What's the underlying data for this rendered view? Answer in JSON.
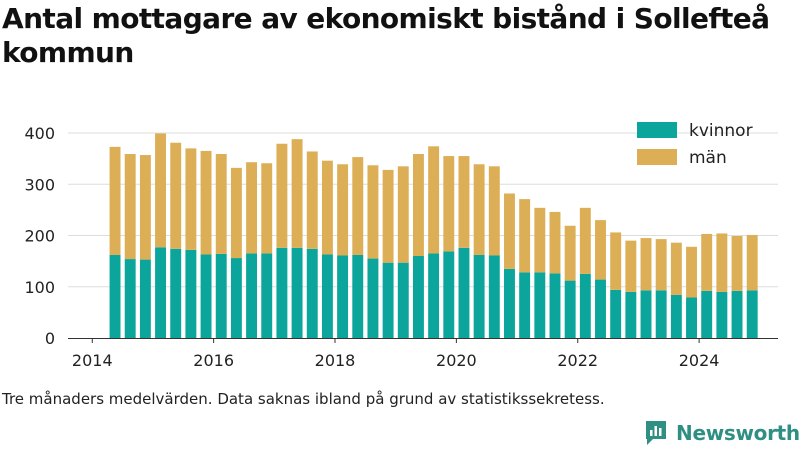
{
  "header": {
    "title": "Antal mottagare av ekonomiskt bistånd i Sollefteå kommun"
  },
  "footer": {
    "note": "Tre månaders medelvärden. Data saknas ibland på grund av statistikssekretess.",
    "brand": "Newsworthy"
  },
  "colors": {
    "kvinnor": "#0ca59b",
    "man": "#dcaf57",
    "grid": "#dddddd",
    "brand": "#2f8f83"
  },
  "chart_data": {
    "type": "bar",
    "stacked": true,
    "title": "Antal mottagare av ekonomiskt bistånd i Sollefteå kommun",
    "ylim": [
      0,
      400
    ],
    "yticks": [
      0,
      100,
      200,
      300,
      400
    ],
    "xticks": [
      "2014",
      "2016",
      "2018",
      "2020",
      "2022",
      "2024"
    ],
    "xlim": [
      2013.6,
      2025.3
    ],
    "legend": {
      "position": "top-right"
    },
    "x": [
      2014.375,
      2014.625,
      2014.875,
      2015.125,
      2015.375,
      2015.625,
      2015.875,
      2016.125,
      2016.375,
      2016.625,
      2016.875,
      2017.125,
      2017.375,
      2017.625,
      2017.875,
      2018.125,
      2018.375,
      2018.625,
      2018.875,
      2019.125,
      2019.375,
      2019.625,
      2019.875,
      2020.125,
      2020.375,
      2020.625,
      2020.875,
      2021.125,
      2021.375,
      2021.625,
      2021.875,
      2022.125,
      2022.375,
      2022.625,
      2022.875,
      2023.125,
      2023.375,
      2023.625,
      2023.875,
      2024.125,
      2024.375,
      2024.625,
      2024.875
    ],
    "series": [
      {
        "name": "kvinnor",
        "color": "#0ca59b",
        "values": [
          162,
          154,
          153,
          177,
          174,
          172,
          163,
          164,
          156,
          165,
          165,
          176,
          176,
          174,
          163,
          161,
          162,
          155,
          147,
          147,
          160,
          165,
          169,
          176,
          162,
          161,
          135,
          128,
          128,
          126,
          112,
          125,
          114,
          94,
          90,
          93,
          93,
          84,
          79,
          92,
          90,
          92,
          93
        ]
      },
      {
        "name": "män",
        "color": "#dcaf57",
        "values": [
          211,
          205,
          204,
          222,
          207,
          198,
          202,
          195,
          176,
          178,
          176,
          203,
          212,
          190,
          183,
          178,
          191,
          182,
          181,
          188,
          199,
          209,
          186,
          179,
          177,
          174,
          147,
          143,
          126,
          120,
          107,
          129,
          116,
          112,
          100,
          102,
          100,
          102,
          99,
          111,
          114,
          107,
          108
        ]
      }
    ]
  }
}
